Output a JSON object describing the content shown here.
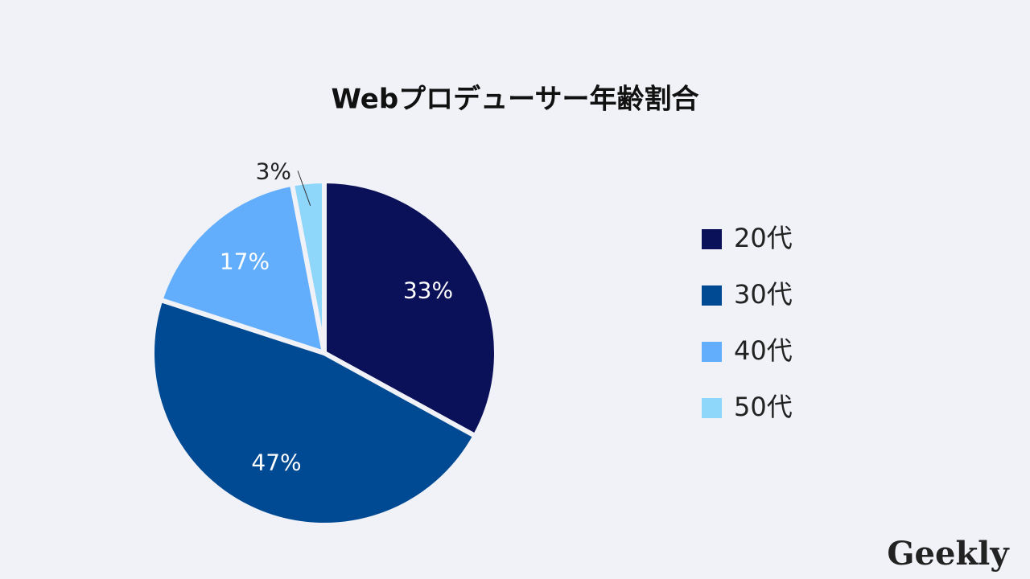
{
  "chart_data": {
    "type": "pie",
    "title": "Webプロデューサー年齢割合",
    "categories": [
      "20代",
      "30代",
      "40代",
      "50代"
    ],
    "values": [
      33,
      47,
      17,
      3
    ],
    "value_labels": [
      "33%",
      "47%",
      "17%",
      "3%"
    ],
    "colors": [
      "#0b1159",
      "#004a93",
      "#63aefc",
      "#8fd6fb"
    ],
    "legend": "right"
  },
  "logo": "Geekly"
}
